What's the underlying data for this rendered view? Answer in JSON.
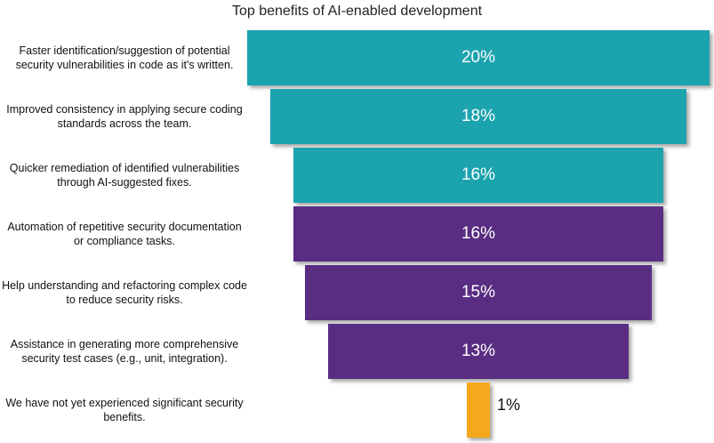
{
  "chart_data": {
    "type": "funnel",
    "title": "Top benefits of AI-enabled development",
    "categories": [
      "Faster identification/suggestion of potential security vulnerabilities in code as it's written.",
      "Improved consistency in applying secure coding standards across the team.",
      "Quicker remediation of identified vulnerabilities through AI-suggested fixes.",
      "Automation of repetitive security documentation or compliance tasks.",
      "Help understanding and refactoring complex code to reduce security risks.",
      "Assistance in generating more comprehensive security test cases (e.g., unit, integration).",
      "We have not yet experienced significant security benefits."
    ],
    "values": [
      20,
      18,
      16,
      16,
      15,
      13,
      1
    ],
    "value_labels": [
      "20%",
      "18%",
      "16%",
      "16%",
      "15%",
      "13%",
      "1%"
    ],
    "colors": [
      "#1ba3ae",
      "#1ba3ae",
      "#1ba3ae",
      "#592d82",
      "#592d82",
      "#592d82",
      "#f5a81c"
    ]
  }
}
